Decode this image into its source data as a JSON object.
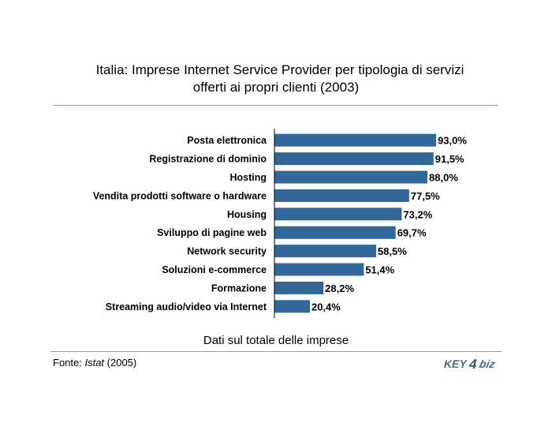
{
  "header": {
    "title_line1": "Italia: Imprese Internet Service Provider per tipologia di servizi",
    "title_line2": "offerti ai propri clienti (2003)"
  },
  "footer": {
    "subtitle": "Dati sul totale delle imprese",
    "source_prefix": "Fonte: ",
    "source_name": "Istat",
    "source_suffix": " (2005)",
    "logo_text_1": "KEY",
    "logo_text_2": "4",
    "logo_text_3": "biz"
  },
  "colors": {
    "bar": "#336699",
    "axis": "#000000",
    "logo": "#4a6a8a"
  },
  "chart_data": {
    "type": "bar",
    "orientation": "horizontal",
    "categories": [
      "Posta elettronica",
      "Registrazione di dominio",
      "Hosting",
      "Vendita prodotti software o hardware",
      "Housing",
      "Sviluppo di pagine web",
      "Network security",
      "Soluzioni e-commerce",
      "Formazione",
      "Streaming audio/video via Internet"
    ],
    "values": [
      93.0,
      91.5,
      88.0,
      77.5,
      73.2,
      69.7,
      58.5,
      51.4,
      28.2,
      20.4
    ],
    "labels": [
      "93,0%",
      "91,5%",
      "88,0%",
      "77,5%",
      "73,2%",
      "69,7%",
      "58,5%",
      "51,4%",
      "28,2%",
      "20,4%"
    ],
    "xlim": [
      0,
      100
    ],
    "grid": false,
    "legend": "none"
  }
}
